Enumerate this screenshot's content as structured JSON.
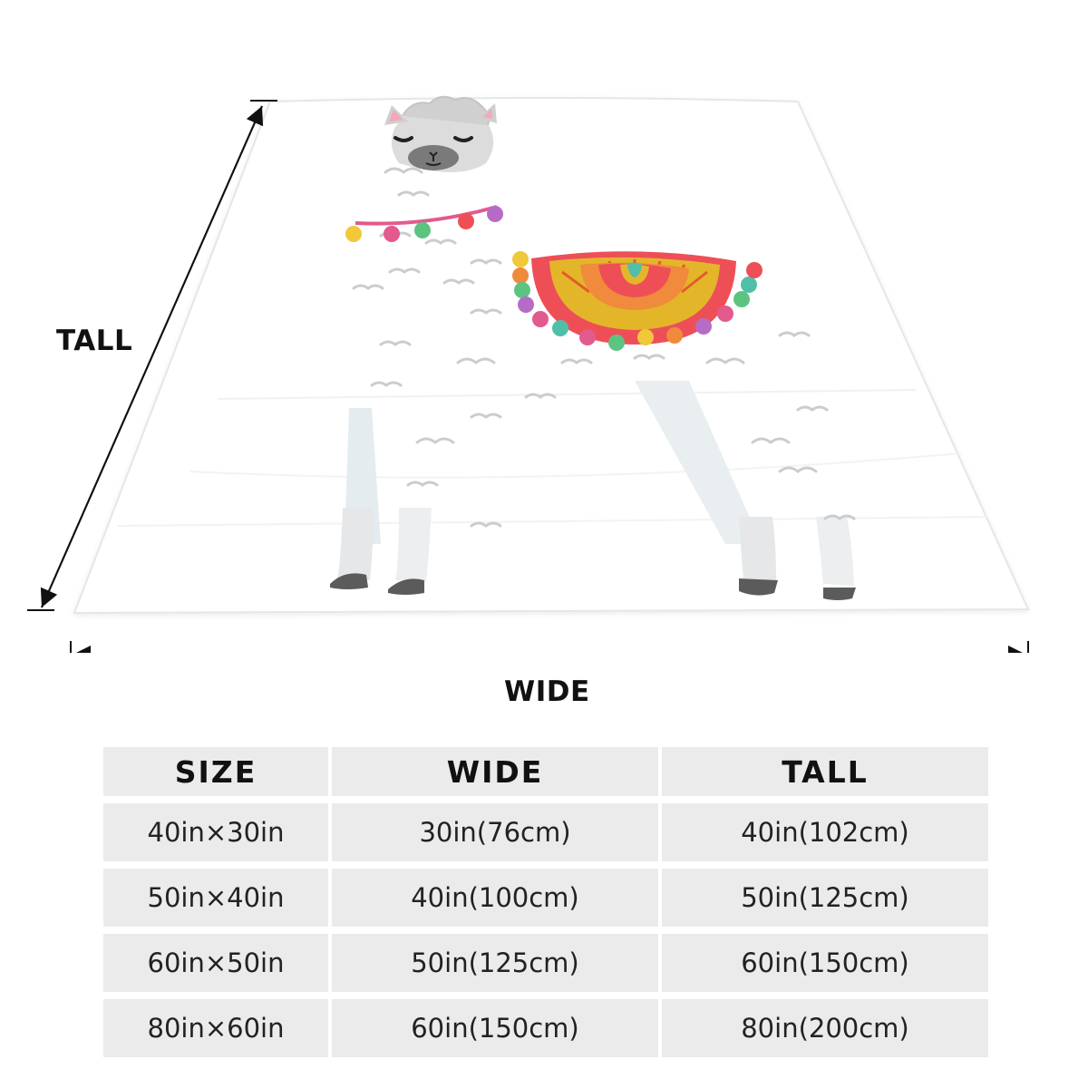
{
  "diagram": {
    "tall_label": "TALL",
    "wide_label": "WIDE"
  },
  "table": {
    "headers": [
      "SIZE",
      "WIDE",
      "TALL"
    ],
    "rows": [
      [
        "40in×30in",
        "30in(76cm)",
        "40in(102cm)"
      ],
      [
        "50in×40in",
        "40in(100cm)",
        "50in(125cm)"
      ],
      [
        "60in×50in",
        "50in(125cm)",
        "60in(150cm)"
      ],
      [
        "80in×60in",
        "60in(150cm)",
        "80in(200cm)"
      ]
    ]
  },
  "colors": {
    "blanket": "#ffffff",
    "wool_outline": "#c8cdd0",
    "leg_shadow": "#e4e9ec",
    "hoof": "#5b5b5b",
    "face": "#bdbdbd",
    "ear_inner": "#f2a8b8",
    "blanket_red": "#ee4f57",
    "blanket_yellow": "#e3b62a",
    "blanket_orange": "#f08a3c",
    "blanket_teal": "#4fbfa8",
    "tassel_pink": "#e25a8e",
    "tassel_green": "#5cc481",
    "tassel_yellow": "#f0c83a",
    "tassel_purple": "#b66cc6",
    "table_bg": "#ebebeb"
  }
}
